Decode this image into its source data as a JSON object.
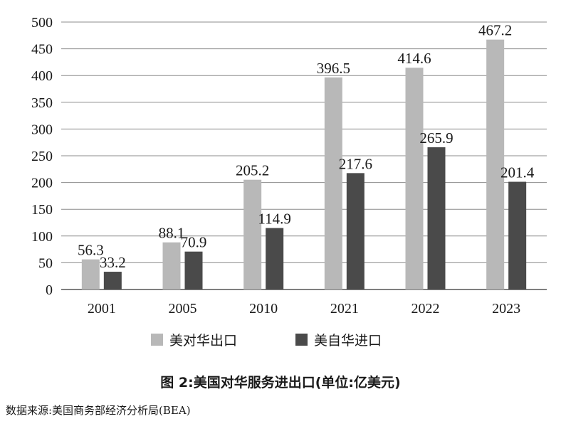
{
  "chart_data": {
    "type": "bar",
    "categories": [
      "2001",
      "2005",
      "2010",
      "2021",
      "2022",
      "2023"
    ],
    "series": [
      {
        "name": "美对华出口",
        "values": [
          56.3,
          88.1,
          205.2,
          396.5,
          414.6,
          467.2
        ],
        "color": "#b8b8b8"
      },
      {
        "name": "美自华进口",
        "values": [
          33.2,
          70.9,
          114.9,
          217.6,
          265.9,
          201.4
        ],
        "color": "#4a4a4a"
      }
    ],
    "ylim": [
      0,
      500
    ],
    "yticks": [
      0,
      50,
      100,
      150,
      200,
      250,
      300,
      350,
      400,
      450,
      500
    ],
    "grid": true,
    "legend_position": "bottom"
  },
  "caption": "图 2:美国对华服务进出口(单位:亿美元)",
  "source": "数据来源:美国商务部经济分析局(BEA)"
}
